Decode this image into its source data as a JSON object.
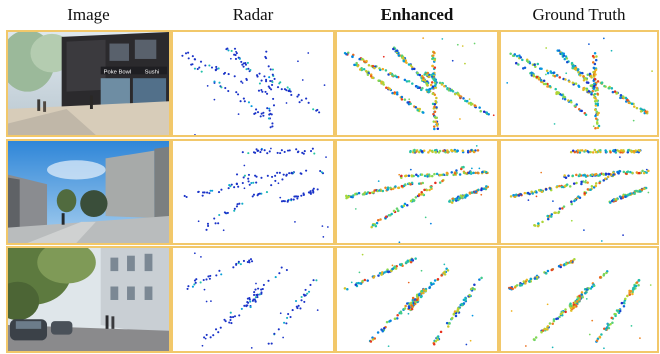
{
  "headers": [
    "Image",
    "Radar",
    "Enhanced",
    "Ground Truth"
  ],
  "columns": [
    "image",
    "radar",
    "enhanced",
    "ground-truth"
  ],
  "rows": [
    {
      "scene": "street-shops",
      "image_hint": "shopfront street with pedestrians",
      "shop_sign_text": [
        "Poke Bowl",
        "Sushi"
      ]
    },
    {
      "scene": "open-road",
      "image_hint": "wide road with low buildings and sky"
    },
    {
      "scene": "tree-lined-street",
      "image_hint": "tree-lined street with parked cars"
    }
  ],
  "colors": {
    "frame": "#f2c86a",
    "radar": "#1a33c8"
  }
}
